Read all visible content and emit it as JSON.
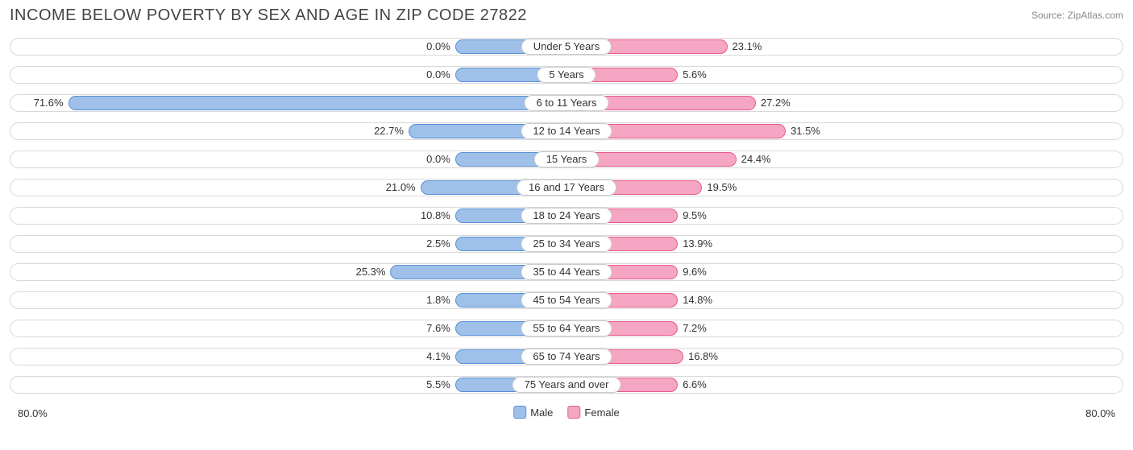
{
  "chart": {
    "type": "diverging-bar",
    "title": "INCOME BELOW POVERTY BY SEX AND AGE IN ZIP CODE 27822",
    "source": "Source: ZipAtlas.com",
    "title_color": "#444444",
    "title_fontsize": 20,
    "source_color": "#888888",
    "source_fontsize": 12,
    "background_color": "#ffffff",
    "track_border_color": "#d8d8d8",
    "label_pill_border": "#cccccc",
    "text_color": "#333333",
    "value_fontsize": 13,
    "label_fontsize": 13,
    "male": {
      "fill": "#9fc0e8",
      "stroke": "#5a8fd6",
      "legend_label": "Male"
    },
    "female": {
      "fill": "#f5a6c2",
      "stroke": "#e85a8f",
      "legend_label": "Female"
    },
    "axis_max": 80.0,
    "axis_label_left": "80.0%",
    "axis_label_right": "80.0%",
    "min_bar_pct": 16.0,
    "rows": [
      {
        "category": "Under 5 Years",
        "male": 0.0,
        "female": 23.1
      },
      {
        "category": "5 Years",
        "male": 0.0,
        "female": 5.6
      },
      {
        "category": "6 to 11 Years",
        "male": 71.6,
        "female": 27.2
      },
      {
        "category": "12 to 14 Years",
        "male": 22.7,
        "female": 31.5
      },
      {
        "category": "15 Years",
        "male": 0.0,
        "female": 24.4
      },
      {
        "category": "16 and 17 Years",
        "male": 21.0,
        "female": 19.5
      },
      {
        "category": "18 to 24 Years",
        "male": 10.8,
        "female": 9.5
      },
      {
        "category": "25 to 34 Years",
        "male": 2.5,
        "female": 13.9
      },
      {
        "category": "35 to 44 Years",
        "male": 25.3,
        "female": 9.6
      },
      {
        "category": "45 to 54 Years",
        "male": 1.8,
        "female": 14.8
      },
      {
        "category": "55 to 64 Years",
        "male": 7.6,
        "female": 7.2
      },
      {
        "category": "65 to 74 Years",
        "male": 4.1,
        "female": 16.8
      },
      {
        "category": "75 Years and over",
        "male": 5.5,
        "female": 6.6
      }
    ]
  }
}
